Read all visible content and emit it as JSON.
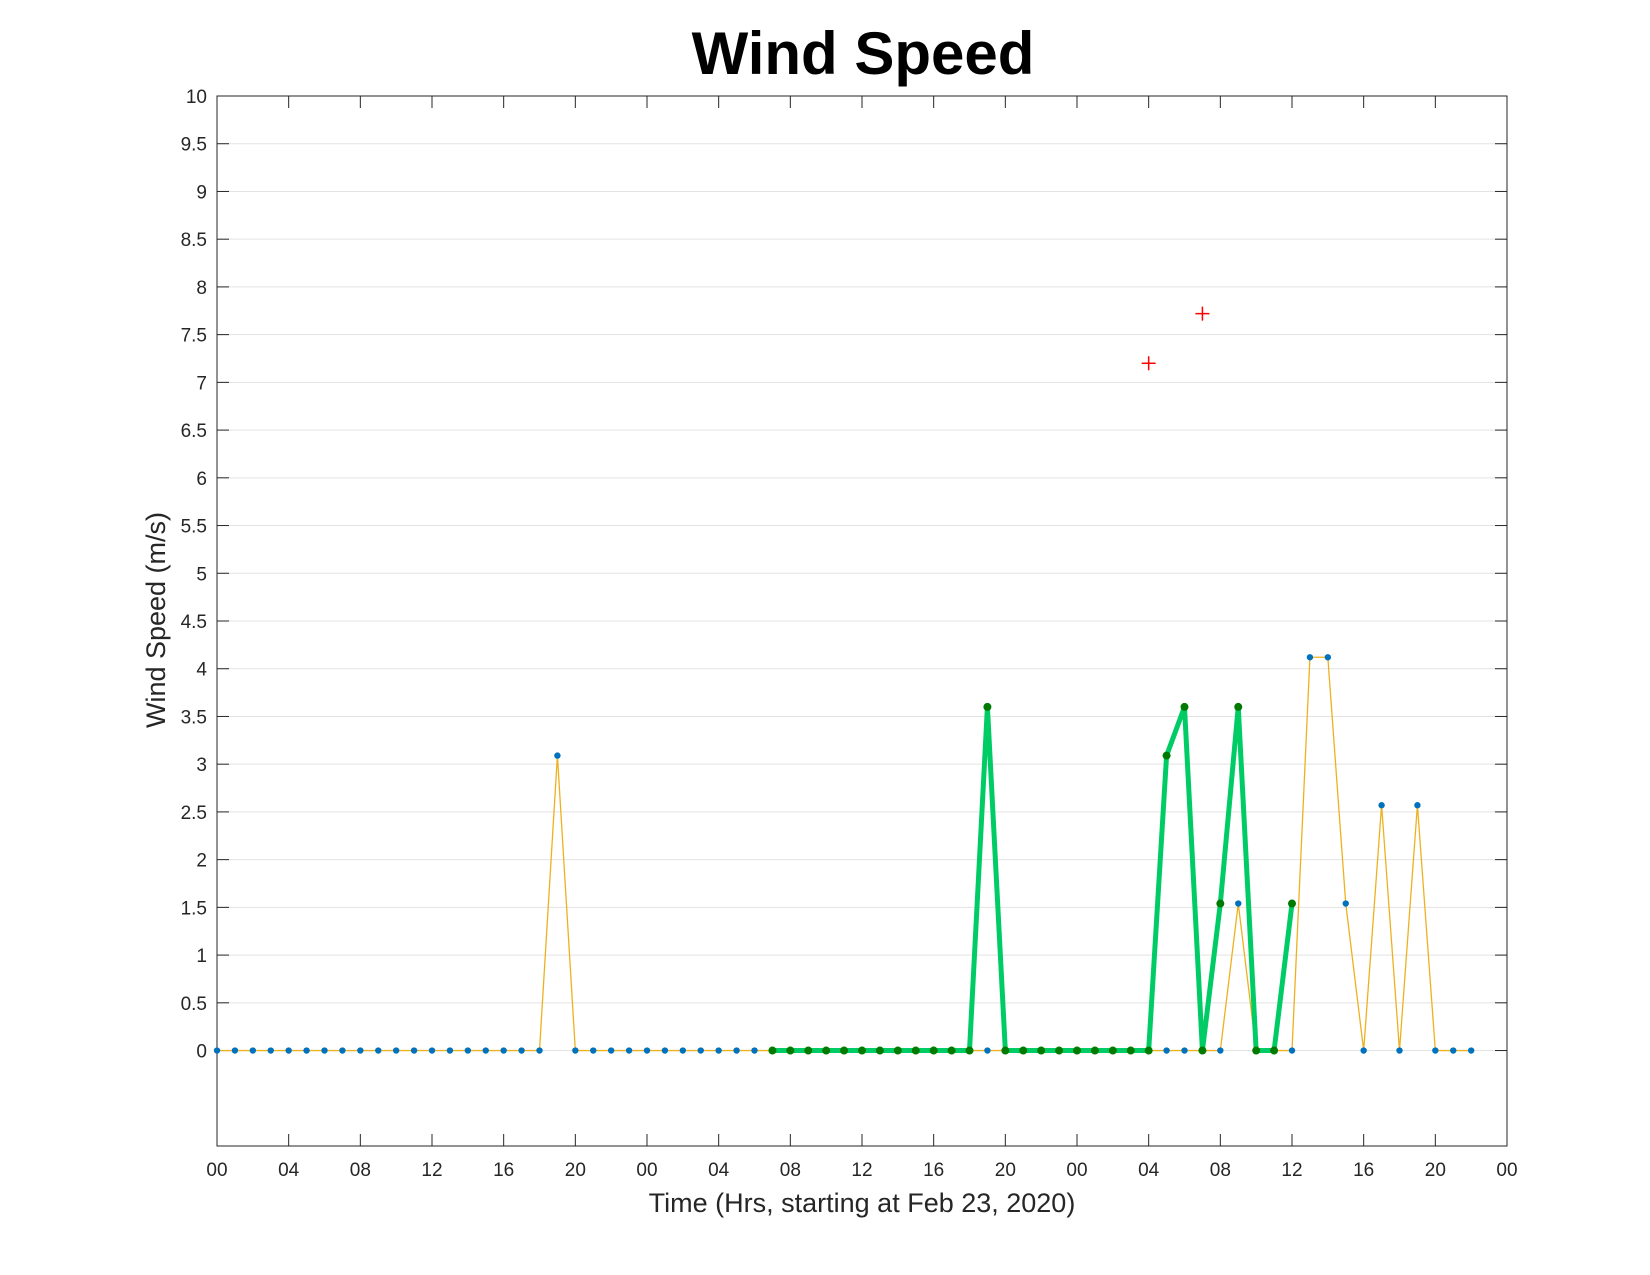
{
  "chart_data": {
    "type": "line",
    "title": "Wind Speed",
    "xlabel": "Time (Hrs, starting at Feb 23, 2020)",
    "ylabel": "Wind Speed (m/s)",
    "x_start": "Feb 23, 2020 00:00",
    "x_step_hours": 1,
    "xlim_hours": [
      0,
      72
    ],
    "ylim": [
      -1,
      10
    ],
    "yticks": [
      "0",
      "0.5",
      "1",
      "1.5",
      "2",
      "2.5",
      "3",
      "3.5",
      "4",
      "4.5",
      "5",
      "5.5",
      "6",
      "6.5",
      "7",
      "7.5",
      "8",
      "8.5",
      "9",
      "9.5",
      "10"
    ],
    "xtick_labels": [
      "00",
      "04",
      "08",
      "12",
      "16",
      "20",
      "00",
      "04",
      "08",
      "12",
      "16",
      "20",
      "00",
      "04",
      "08",
      "12",
      "16",
      "20",
      "00"
    ],
    "grid": "horizontal",
    "series": [
      {
        "color": "#EDB120",
        "marker_color": "#0072BD",
        "values": [
          0,
          0,
          0,
          0,
          0,
          0,
          0,
          0,
          0,
          0,
          0,
          0,
          0,
          0,
          0,
          0,
          0,
          0,
          0,
          3.09,
          0,
          0,
          0,
          0,
          0,
          0,
          0,
          0,
          0,
          0,
          0,
          0,
          0,
          0,
          0,
          0,
          0,
          0,
          0,
          0,
          0,
          0,
          0,
          0,
          0,
          0,
          0,
          0,
          0,
          0,
          0,
          0,
          0,
          0,
          0,
          0,
          0,
          1.54,
          0,
          0,
          0,
          4.12,
          4.12,
          1.54,
          0,
          2.57,
          0,
          2.57,
          0,
          0,
          0
        ]
      },
      {
        "color": "#00CC66",
        "marker_color": "#007A00",
        "start_index": 31,
        "values": [
          0,
          0,
          0,
          0,
          0,
          0,
          0,
          0,
          0,
          0,
          0,
          0,
          3.6,
          0,
          0,
          0,
          0,
          0,
          0,
          0,
          0,
          0,
          3.09,
          3.6,
          0,
          1.54,
          3.6,
          0,
          0,
          1.54
        ]
      },
      {
        "color": "#FF0000",
        "marker": "plus",
        "points": [
          {
            "x": 52,
            "y": 7.2
          },
          {
            "x": 55,
            "y": 7.72
          }
        ]
      }
    ]
  }
}
